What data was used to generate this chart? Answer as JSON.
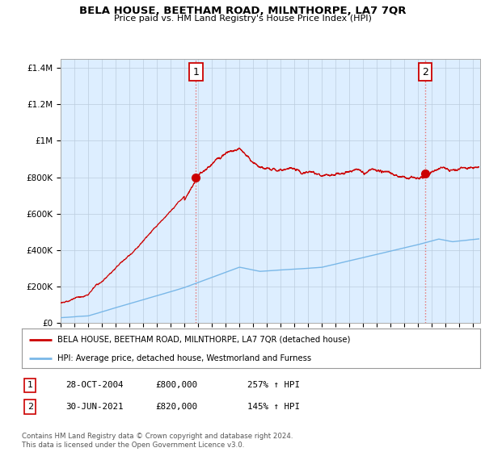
{
  "title": "BELA HOUSE, BEETHAM ROAD, MILNTHORPE, LA7 7QR",
  "subtitle": "Price paid vs. HM Land Registry's House Price Index (HPI)",
  "ylabel_ticks": [
    "£0",
    "£200K",
    "£400K",
    "£600K",
    "£800K",
    "£1M",
    "£1.2M",
    "£1.4M"
  ],
  "ytick_values": [
    0,
    200000,
    400000,
    600000,
    800000,
    1000000,
    1200000,
    1400000
  ],
  "ylim": [
    0,
    1450000
  ],
  "xlim_start": 1995,
  "xlim_end": 2025.5,
  "sale1_x": 2004.83,
  "sale1_y": 800000,
  "sale1_label": "1",
  "sale2_x": 2021.5,
  "sale2_y": 820000,
  "sale2_label": "2",
  "hpi_color": "#7ab8e8",
  "price_color": "#cc0000",
  "dashed_color": "#e87070",
  "plot_bg_color": "#ddeeff",
  "legend_house_label": "BELA HOUSE, BEETHAM ROAD, MILNTHORPE, LA7 7QR (detached house)",
  "legend_hpi_label": "HPI: Average price, detached house, Westmorland and Furness",
  "table_rows": [
    {
      "num": "1",
      "date": "28-OCT-2004",
      "price": "£800,000",
      "hpi": "257% ↑ HPI"
    },
    {
      "num": "2",
      "date": "30-JUN-2021",
      "price": "£820,000",
      "hpi": "145% ↑ HPI"
    }
  ],
  "footnote": "Contains HM Land Registry data © Crown copyright and database right 2024.\nThis data is licensed under the Open Government Licence v3.0.",
  "background_color": "#ffffff",
  "grid_color": "#bbccdd"
}
